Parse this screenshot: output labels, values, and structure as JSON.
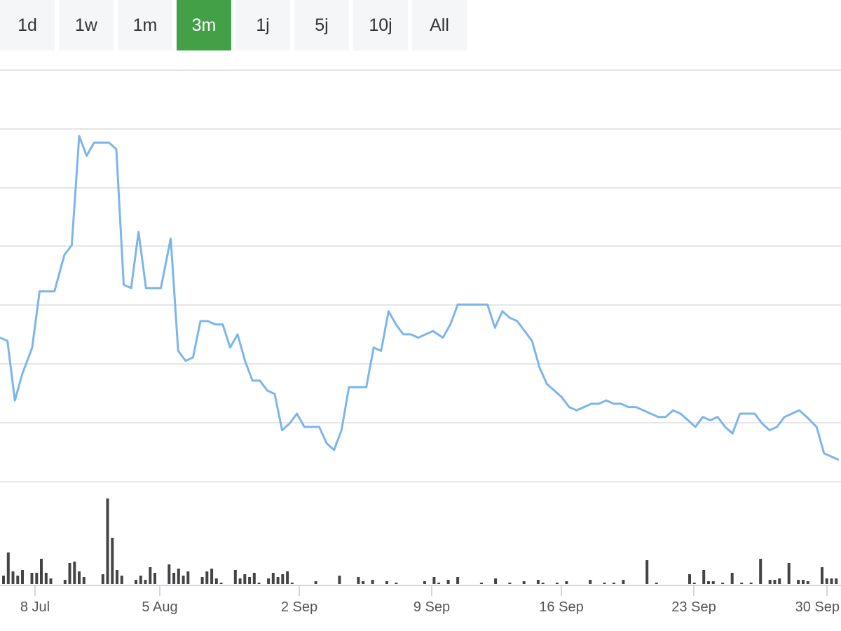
{
  "range_selector": {
    "buttons": [
      {
        "label": "1d",
        "active": false
      },
      {
        "label": "1w",
        "active": false
      },
      {
        "label": "1m",
        "active": false
      },
      {
        "label": "3m",
        "active": true
      },
      {
        "label": "1j",
        "active": false
      },
      {
        "label": "5j",
        "active": false
      },
      {
        "label": "10j",
        "active": false
      },
      {
        "label": "All",
        "active": false
      }
    ],
    "active_color": "#43a047"
  },
  "chart_data": {
    "type": "line",
    "x_tick_labels": [
      "8 Jul",
      "5 Aug",
      "2 Sep",
      "9 Sep",
      "16 Sep",
      "23 Sep",
      "30 Sep"
    ],
    "line_color": "#7cb5ec",
    "volume_color": "#444444",
    "grid": true,
    "price_series": [
      {
        "x": 0,
        "y": 0.4
      },
      {
        "x": 0.3,
        "y": 0.3
      },
      {
        "x": 0.6,
        "y": -1.5
      },
      {
        "x": 0.9,
        "y": -0.7
      },
      {
        "x": 1.3,
        "y": 0.1
      },
      {
        "x": 1.6,
        "y": 1.8
      },
      {
        "x": 2.2,
        "y": 1.8
      },
      {
        "x": 2.6,
        "y": 2.9
      },
      {
        "x": 2.9,
        "y": 3.2
      },
      {
        "x": 3.2,
        "y": 6.5
      },
      {
        "x": 3.5,
        "y": 5.9
      },
      {
        "x": 3.8,
        "y": 6.3
      },
      {
        "x": 4.4,
        "y": 6.3
      },
      {
        "x": 4.7,
        "y": 6.1
      },
      {
        "x": 5.0,
        "y": 2.0
      },
      {
        "x": 5.3,
        "y": 1.9
      },
      {
        "x": 5.6,
        "y": 3.6
      },
      {
        "x": 5.9,
        "y": 1.9
      },
      {
        "x": 6.5,
        "y": 1.9
      },
      {
        "x": 6.9,
        "y": 3.4
      },
      {
        "x": 7.2,
        "y": 0.0
      },
      {
        "x": 7.5,
        "y": -0.3
      },
      {
        "x": 7.8,
        "y": -0.2
      },
      {
        "x": 8.1,
        "y": 0.9
      },
      {
        "x": 8.4,
        "y": 0.9
      },
      {
        "x": 8.7,
        "y": 0.8
      },
      {
        "x": 9.0,
        "y": 0.8
      },
      {
        "x": 9.3,
        "y": 0.1
      },
      {
        "x": 9.6,
        "y": 0.5
      },
      {
        "x": 9.9,
        "y": -0.3
      },
      {
        "x": 10.2,
        "y": -0.9
      },
      {
        "x": 10.5,
        "y": -0.9
      },
      {
        "x": 10.8,
        "y": -1.2
      },
      {
        "x": 11.1,
        "y": -1.3
      },
      {
        "x": 11.4,
        "y": -2.4
      },
      {
        "x": 11.7,
        "y": -2.2
      },
      {
        "x": 12.0,
        "y": -1.9
      },
      {
        "x": 12.3,
        "y": -2.3
      },
      {
        "x": 12.9,
        "y": -2.3
      },
      {
        "x": 13.2,
        "y": -2.8
      },
      {
        "x": 13.5,
        "y": -3.0
      },
      {
        "x": 13.8,
        "y": -2.4
      },
      {
        "x": 14.1,
        "y": -1.1
      },
      {
        "x": 14.4,
        "y": -1.1
      },
      {
        "x": 14.8,
        "y": -1.1
      },
      {
        "x": 15.1,
        "y": 0.1
      },
      {
        "x": 15.4,
        "y": 0.0
      },
      {
        "x": 15.7,
        "y": 1.2
      },
      {
        "x": 16.0,
        "y": 0.8
      },
      {
        "x": 16.3,
        "y": 0.5
      },
      {
        "x": 16.6,
        "y": 0.5
      },
      {
        "x": 16.9,
        "y": 0.4
      },
      {
        "x": 17.2,
        "y": 0.5
      },
      {
        "x": 17.5,
        "y": 0.6
      },
      {
        "x": 17.9,
        "y": 0.4
      },
      {
        "x": 18.2,
        "y": 0.8
      },
      {
        "x": 18.5,
        "y": 1.4
      },
      {
        "x": 18.8,
        "y": 1.4
      },
      {
        "x": 19.1,
        "y": 1.4
      },
      {
        "x": 19.4,
        "y": 1.4
      },
      {
        "x": 19.7,
        "y": 1.4
      },
      {
        "x": 20.0,
        "y": 0.7
      },
      {
        "x": 20.3,
        "y": 1.2
      },
      {
        "x": 20.6,
        "y": 1.0
      },
      {
        "x": 20.9,
        "y": 0.9
      },
      {
        "x": 21.2,
        "y": 0.6
      },
      {
        "x": 21.5,
        "y": 0.3
      },
      {
        "x": 21.8,
        "y": -0.5
      },
      {
        "x": 22.1,
        "y": -1.0
      },
      {
        "x": 22.4,
        "y": -1.2
      },
      {
        "x": 22.7,
        "y": -1.4
      },
      {
        "x": 23.0,
        "y": -1.7
      },
      {
        "x": 23.3,
        "y": -1.8
      },
      {
        "x": 23.6,
        "y": -1.7
      },
      {
        "x": 23.9,
        "y": -1.6
      },
      {
        "x": 24.2,
        "y": -1.6
      },
      {
        "x": 24.5,
        "y": -1.5
      },
      {
        "x": 24.8,
        "y": -1.6
      },
      {
        "x": 25.1,
        "y": -1.6
      },
      {
        "x": 25.4,
        "y": -1.7
      },
      {
        "x": 25.7,
        "y": -1.7
      },
      {
        "x": 26.0,
        "y": -1.8
      },
      {
        "x": 26.3,
        "y": -1.9
      },
      {
        "x": 26.6,
        "y": -2.0
      },
      {
        "x": 26.9,
        "y": -2.0
      },
      {
        "x": 27.2,
        "y": -1.8
      },
      {
        "x": 27.5,
        "y": -1.9
      },
      {
        "x": 27.8,
        "y": -2.1
      },
      {
        "x": 28.1,
        "y": -2.3
      },
      {
        "x": 28.4,
        "y": -2.0
      },
      {
        "x": 28.7,
        "y": -2.1
      },
      {
        "x": 29.0,
        "y": -2.0
      },
      {
        "x": 29.3,
        "y": -2.3
      },
      {
        "x": 29.6,
        "y": -2.5
      },
      {
        "x": 29.9,
        "y": -1.9
      },
      {
        "x": 30.2,
        "y": -1.9
      },
      {
        "x": 30.5,
        "y": -1.9
      },
      {
        "x": 30.8,
        "y": -2.2
      },
      {
        "x": 31.1,
        "y": -2.4
      },
      {
        "x": 31.4,
        "y": -2.3
      },
      {
        "x": 31.7,
        "y": -2.0
      },
      {
        "x": 32.0,
        "y": -1.9
      },
      {
        "x": 32.3,
        "y": -1.8
      },
      {
        "x": 32.6,
        "y": -2.0
      },
      {
        "x": 33.0,
        "y": -2.3
      },
      {
        "x": 33.3,
        "y": -3.1
      },
      {
        "x": 33.6,
        "y": -3.2
      },
      {
        "x": 33.9,
        "y": -3.3
      }
    ]
  }
}
